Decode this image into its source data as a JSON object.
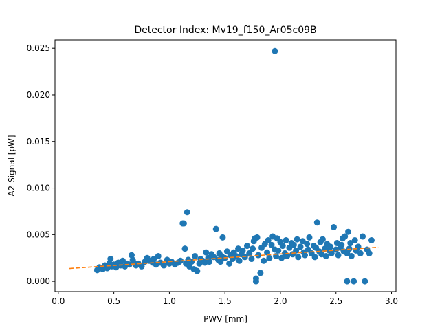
{
  "chart_data": {
    "type": "scatter",
    "title": "Detector Index: Mv19_f150_Ar05c09B",
    "xlabel": "PWV [mm]",
    "ylabel": "A2 Signal [pW]",
    "xlim": [
      -0.03,
      3.04
    ],
    "ylim": [
      -0.0011,
      0.0259
    ],
    "x_ticks": [
      0.0,
      0.5,
      1.0,
      1.5,
      2.0,
      2.5,
      3.0
    ],
    "x_tick_labels": [
      "0.0",
      "0.5",
      "1.0",
      "1.5",
      "2.0",
      "2.5",
      "3.0"
    ],
    "y_ticks": [
      0.0,
      0.005,
      0.01,
      0.015,
      0.02,
      0.025
    ],
    "y_tick_labels": [
      "0.000",
      "0.005",
      "0.010",
      "0.015",
      "0.020",
      "0.025"
    ],
    "grid": false,
    "colors": {
      "points": "#1f77b4",
      "fit": "#ff7f0e"
    },
    "series": [
      {
        "kind": "points",
        "x": [
          0.35,
          0.37,
          0.4,
          0.42,
          0.44,
          0.46,
          0.47,
          0.48,
          0.5,
          0.52,
          0.54,
          0.56,
          0.58,
          0.6,
          0.62,
          0.64,
          0.66,
          0.67,
          0.68,
          0.7,
          0.72,
          0.75,
          0.78,
          0.8,
          0.82,
          0.85,
          0.86,
          0.88,
          0.9,
          0.92,
          0.95,
          0.98,
          1.0,
          1.02,
          1.05,
          1.08,
          1.1,
          1.12,
          1.13,
          1.14,
          1.15,
          1.16,
          1.17,
          1.18,
          1.2,
          1.22,
          1.23,
          1.25,
          1.27,
          1.28,
          1.3,
          1.32,
          1.33,
          1.35,
          1.36,
          1.38,
          1.4,
          1.42,
          1.44,
          1.45,
          1.46,
          1.47,
          1.48,
          1.5,
          1.52,
          1.54,
          1.55,
          1.57,
          1.58,
          1.6,
          1.62,
          1.63,
          1.65,
          1.66,
          1.68,
          1.7,
          1.72,
          1.74,
          1.75,
          1.76,
          1.77,
          1.78,
          1.78,
          1.79,
          1.8,
          1.82,
          1.83,
          1.85,
          1.86,
          1.88,
          1.89,
          1.9,
          1.92,
          1.93,
          1.95,
          1.95,
          1.96,
          1.97,
          1.98,
          2.0,
          2.01,
          2.02,
          2.04,
          2.05,
          2.06,
          2.08,
          2.1,
          2.11,
          2.12,
          2.14,
          2.15,
          2.16,
          2.18,
          2.2,
          2.21,
          2.22,
          2.24,
          2.25,
          2.26,
          2.28,
          2.3,
          2.31,
          2.32,
          2.33,
          2.35,
          2.36,
          2.37,
          2.38,
          2.4,
          2.41,
          2.42,
          2.44,
          2.45,
          2.46,
          2.48,
          2.5,
          2.51,
          2.52,
          2.54,
          2.55,
          2.56,
          2.57,
          2.58,
          2.6,
          2.6,
          2.61,
          2.62,
          2.63,
          2.64,
          2.66,
          2.67,
          2.68,
          2.7,
          2.72,
          2.74,
          2.76,
          2.78,
          2.8,
          2.82
        ],
        "y": [
          0.0012,
          0.0015,
          0.0013,
          0.0017,
          0.0014,
          0.0019,
          0.0024,
          0.0016,
          0.0018,
          0.0015,
          0.002,
          0.0017,
          0.0022,
          0.0016,
          0.0019,
          0.0018,
          0.0028,
          0.0023,
          0.002,
          0.0017,
          0.0019,
          0.0016,
          0.0021,
          0.0025,
          0.0022,
          0.002,
          0.0024,
          0.0018,
          0.0027,
          0.002,
          0.0017,
          0.0023,
          0.0019,
          0.0021,
          0.0018,
          0.002,
          0.0022,
          0.0062,
          0.0062,
          0.0035,
          0.0019,
          0.0074,
          0.0023,
          0.0016,
          0.0021,
          0.0013,
          0.0027,
          0.0011,
          0.0019,
          0.0024,
          0.0022,
          0.002,
          0.0031,
          0.0025,
          0.0021,
          0.0029,
          0.0026,
          0.0056,
          0.0023,
          0.003,
          0.0021,
          0.0027,
          0.0047,
          0.0025,
          0.0032,
          0.0019,
          0.0028,
          0.0024,
          0.0031,
          0.0027,
          0.0035,
          0.0022,
          0.0029,
          0.0033,
          0.0026,
          0.0038,
          0.003,
          0.0024,
          0.0035,
          0.0043,
          0.0046,
          0.0,
          0.0003,
          0.0047,
          0.0028,
          0.0009,
          0.0036,
          0.0022,
          0.004,
          0.0031,
          0.0044,
          0.0025,
          0.0039,
          0.0048,
          0.0034,
          0.0247,
          0.0027,
          0.0046,
          0.0033,
          0.0042,
          0.0025,
          0.0038,
          0.003,
          0.0044,
          0.0027,
          0.0036,
          0.0041,
          0.0029,
          0.0039,
          0.0033,
          0.0045,
          0.0026,
          0.0037,
          0.0043,
          0.0031,
          0.0028,
          0.004,
          0.0034,
          0.0047,
          0.003,
          0.0038,
          0.0026,
          0.0036,
          0.0063,
          0.0032,
          0.0042,
          0.0029,
          0.0045,
          0.0035,
          0.0027,
          0.004,
          0.0033,
          0.0037,
          0.003,
          0.0058,
          0.0034,
          0.0041,
          0.0028,
          0.0036,
          0.0039,
          0.0046,
          0.0032,
          0.0048,
          0.0,
          0.003,
          0.0053,
          0.0035,
          0.0041,
          0.0027,
          0.0,
          0.0044,
          0.0033,
          0.0037,
          0.003,
          0.0048,
          0.0,
          0.0034,
          0.003,
          0.0044
        ]
      },
      {
        "kind": "fit",
        "style": "dashed",
        "x": [
          0.1,
          2.88
        ],
        "y": [
          0.00137,
          0.00365
        ]
      }
    ]
  }
}
